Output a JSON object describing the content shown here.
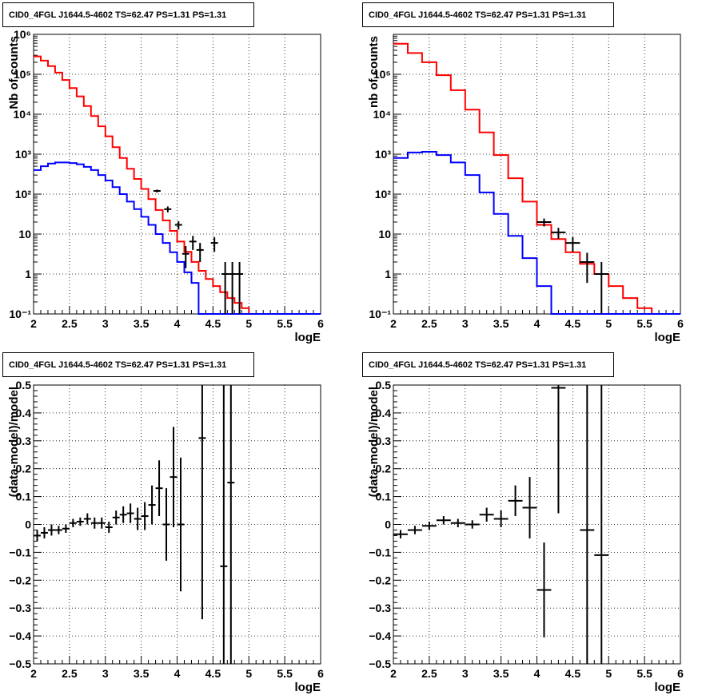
{
  "canvas": {
    "background": "#ffffff"
  },
  "colors": {
    "model_total": "#ff0000",
    "model_bkg": "#0000ff",
    "data": "#000000",
    "grid": "#000000"
  },
  "chart_data": [
    {
      "type": "line",
      "title": "CID0_4FGL J1644.5-4602 TS=62.47 PS=1.31 PS=1.31",
      "xlabel": "logE",
      "ylabel": "Nb of counts",
      "xlim": [
        2,
        6
      ],
      "ylim": [
        0.1,
        1000000
      ],
      "yscale": "log",
      "grid": true,
      "x_ticks": [
        "2",
        "2.5",
        "3",
        "3.5",
        "4",
        "4.5",
        "5",
        "5.5",
        "6"
      ],
      "y_ticks": [
        "10⁻¹",
        "1",
        "10",
        "10²",
        "10³",
        "10⁴",
        "10⁵",
        "10⁶"
      ],
      "bin_edges": [
        2.0,
        2.1,
        2.2,
        2.3,
        2.4,
        2.5,
        2.6,
        2.7,
        2.8,
        2.9,
        3.0,
        3.1,
        3.2,
        3.3,
        3.4,
        3.5,
        3.6,
        3.7,
        3.8,
        3.9,
        4.0,
        4.1,
        4.2,
        4.3,
        4.4,
        4.5,
        4.6,
        4.7,
        4.8,
        4.9,
        5.0,
        5.1,
        5.2,
        5.3,
        5.4,
        5.5,
        5.6,
        5.7,
        5.8,
        5.9,
        6.0
      ],
      "series": [
        {
          "role": "model-total",
          "color": "#ff0000",
          "values": [
            280000,
            220000,
            160000,
            110000,
            72000,
            45000,
            28000,
            16000,
            9000,
            5000,
            2800,
            1500,
            800,
            430,
            240,
            135,
            75,
            40,
            22,
            12,
            6.5,
            3.6,
            2.0,
            1.2,
            0.75,
            0.5,
            0.35,
            0.25,
            0.19,
            0.14,
            0.1,
            0.1,
            0.1,
            0.1,
            0.1,
            0.1,
            0.1,
            0.1,
            0.1,
            0.1
          ]
        },
        {
          "role": "model-background",
          "color": "#0000ff",
          "values": [
            400,
            500,
            580,
            620,
            620,
            600,
            560,
            480,
            400,
            300,
            220,
            150,
            100,
            65,
            42,
            27,
            17,
            10,
            6,
            3.5,
            2,
            1.1,
            0.6,
            0.1,
            0.1,
            0.1,
            0.1,
            0.1,
            0.1,
            0.1,
            0.1,
            0.1,
            0.1,
            0.1,
            0.1,
            0.1,
            0.1,
            0.1,
            0.1,
            0.1
          ]
        },
        {
          "role": "data",
          "color": "#000000",
          "points": [
            [
              3.72,
              120,
              10
            ],
            [
              3.87,
              42,
              7
            ],
            [
              4.02,
              17,
              4
            ],
            [
              4.12,
              3.2,
              1.8
            ],
            [
              4.22,
              6.5,
              2.5
            ],
            [
              4.32,
              4,
              2
            ],
            [
              4.52,
              6,
              2.4
            ],
            [
              4.67,
              1,
              1
            ],
            [
              4.77,
              1,
              1
            ],
            [
              4.87,
              1,
              1
            ]
          ]
        }
      ]
    },
    {
      "type": "line",
      "title": "CID0_4FGL J1644.5-4602 TS=62.47 PS=1.31 PS=1.31",
      "xlabel": "logE",
      "ylabel": "nb of counts",
      "xlim": [
        2,
        6
      ],
      "ylim": [
        0.1,
        1000000
      ],
      "yscale": "log",
      "grid": true,
      "x_ticks": [
        "2",
        "2.5",
        "3",
        "3.5",
        "4",
        "4.5",
        "5",
        "5.5",
        "6"
      ],
      "y_ticks": [
        "10⁻¹",
        "1",
        "10",
        "10²",
        "10³",
        "10⁴",
        "10⁵"
      ],
      "bin_edges": [
        2.0,
        2.2,
        2.4,
        2.6,
        2.8,
        3.0,
        3.2,
        3.4,
        3.6,
        3.8,
        4.0,
        4.2,
        4.4,
        4.6,
        4.8,
        5.0,
        5.2,
        5.4,
        5.6,
        5.8,
        6.0
      ],
      "series": [
        {
          "role": "model-total",
          "color": "#ff0000",
          "values": [
            580000,
            340000,
            200000,
            95000,
            40000,
            13000,
            3500,
            950,
            250,
            65,
            17,
            7.5,
            3.5,
            1.8,
            1.0,
            0.5,
            0.25,
            0.14,
            0.1,
            0.1
          ]
        },
        {
          "role": "model-background",
          "color": "#0000ff",
          "values": [
            800,
            1100,
            1150,
            950,
            620,
            300,
            110,
            32,
            9,
            2.5,
            0.5,
            0.1,
            0.1,
            0.1,
            0.1,
            0.1,
            0.1,
            0.1,
            0.1,
            0.1
          ]
        },
        {
          "role": "data",
          "color": "#000000",
          "points": [
            [
              4.1,
              20,
              4.5
            ],
            [
              4.3,
              11,
              3.3
            ],
            [
              4.5,
              6,
              2.4
            ],
            [
              4.7,
              2,
              1.4
            ],
            [
              4.9,
              1,
              1
            ]
          ]
        }
      ]
    },
    {
      "type": "scatter",
      "title": "CID0_4FGL J1644.5-4602 TS=62.47 PS=1.31 PS=1.31",
      "xlabel": "logE",
      "ylabel": "(data-model)/model",
      "xlim": [
        2,
        6
      ],
      "ylim": [
        -0.5,
        0.5
      ],
      "grid": true,
      "x_ticks": [
        "2",
        "2.5",
        "3",
        "3.5",
        "4",
        "4.5",
        "5",
        "5.5",
        "6"
      ],
      "y_ticks": [
        "−0.5",
        "−0.4",
        "−0.3",
        "−0.2",
        "−0.1",
        "0",
        "0.1",
        "0.2",
        "0.3",
        "0.4",
        "0.5"
      ],
      "bin_width": 0.1,
      "points": [
        [
          2.05,
          -0.04,
          0.02
        ],
        [
          2.15,
          -0.03,
          0.02
        ],
        [
          2.25,
          -0.02,
          0.02
        ],
        [
          2.35,
          -0.02,
          0.015
        ],
        [
          2.45,
          -0.015,
          0.015
        ],
        [
          2.55,
          0.005,
          0.015
        ],
        [
          2.65,
          0.01,
          0.015
        ],
        [
          2.75,
          0.02,
          0.02
        ],
        [
          2.85,
          0.005,
          0.02
        ],
        [
          2.95,
          0.005,
          0.02
        ],
        [
          3.05,
          -0.01,
          0.02
        ],
        [
          3.15,
          0.025,
          0.025
        ],
        [
          3.25,
          0.035,
          0.03
        ],
        [
          3.35,
          0.04,
          0.035
        ],
        [
          3.45,
          0.02,
          0.04
        ],
        [
          3.55,
          0.03,
          0.05
        ],
        [
          3.65,
          0.07,
          0.07
        ],
        [
          3.75,
          0.13,
          0.1
        ],
        [
          3.85,
          0.0,
          0.13
        ],
        [
          3.95,
          0.17,
          0.18
        ],
        [
          4.05,
          0.0,
          0.24
        ],
        [
          4.35,
          0.31,
          0.65
        ],
        [
          4.65,
          -0.15,
          0.9
        ],
        [
          4.75,
          0.15,
          1.5
        ]
      ]
    },
    {
      "type": "scatter",
      "title": "CID0_4FGL J1644.5-4602 TS=62.47 PS=1.31 PS=1.31",
      "xlabel": "logE",
      "ylabel": "(data-model)/model",
      "xlim": [
        2,
        6
      ],
      "ylim": [
        -0.5,
        0.5
      ],
      "grid": true,
      "x_ticks": [
        "2",
        "2.5",
        "3",
        "3.5",
        "4",
        "4.5",
        "5",
        "5.5",
        "6"
      ],
      "y_ticks": [
        "−0.5",
        "−0.4",
        "−0.3",
        "−0.2",
        "−0.1",
        "0",
        "0.1",
        "0.2",
        "0.3",
        "0.4",
        "0.5"
      ],
      "bin_width": 0.2,
      "points": [
        [
          2.1,
          -0.035,
          0.015
        ],
        [
          2.3,
          -0.02,
          0.015
        ],
        [
          2.5,
          -0.005,
          0.015
        ],
        [
          2.7,
          0.015,
          0.015
        ],
        [
          2.9,
          0.005,
          0.015
        ],
        [
          3.1,
          0.0,
          0.015
        ],
        [
          3.3,
          0.035,
          0.025
        ],
        [
          3.5,
          0.02,
          0.03
        ],
        [
          3.7,
          0.085,
          0.055
        ],
        [
          3.9,
          0.06,
          0.11
        ],
        [
          4.1,
          -0.235,
          0.17
        ],
        [
          4.3,
          0.49,
          0.45
        ],
        [
          4.7,
          -0.02,
          1.5
        ],
        [
          4.9,
          -0.11,
          1.5
        ]
      ]
    }
  ]
}
